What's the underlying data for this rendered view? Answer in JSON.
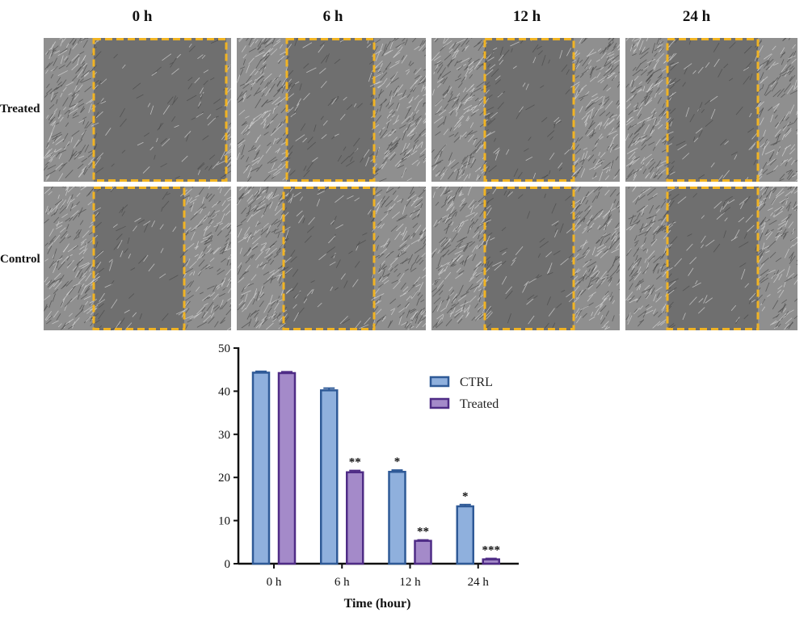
{
  "panel": {
    "columns": [
      "0 h",
      "6 h",
      "12 h",
      "24 h"
    ],
    "rows": [
      "Treated",
      "Control"
    ],
    "colors": {
      "cell_background": "#8f8f8f",
      "gap_area": "#6f6f6f",
      "cell_line": "#d8d8d8",
      "wound_box": "#f0b323"
    }
  },
  "chart_data": {
    "type": "bar",
    "categories": [
      "0 h",
      "6 h",
      "12 h",
      "24 h"
    ],
    "series": [
      {
        "name": "CTRL",
        "values": [
          44.3,
          40.2,
          21.3,
          13.3
        ],
        "errors": [
          0.3,
          0.5,
          0.4,
          0.4
        ],
        "color": "#8fb0dd",
        "edge": "#2f5a97",
        "significance": [
          "",
          "",
          "*",
          "*"
        ]
      },
      {
        "name": "Treated",
        "values": [
          44.2,
          21.2,
          5.3,
          1.0
        ],
        "errors": [
          0.3,
          0.4,
          0.2,
          0.2
        ],
        "color": "#a48ac9",
        "edge": "#4f2c86",
        "significance": [
          "",
          "**",
          "**",
          "***"
        ]
      }
    ],
    "xlabel": "Time (hour)",
    "ylabel": "",
    "ylim": [
      0,
      50
    ],
    "yticks": [
      0,
      10,
      20,
      30,
      40,
      50
    ],
    "legend": "top-right",
    "grid": false
  }
}
